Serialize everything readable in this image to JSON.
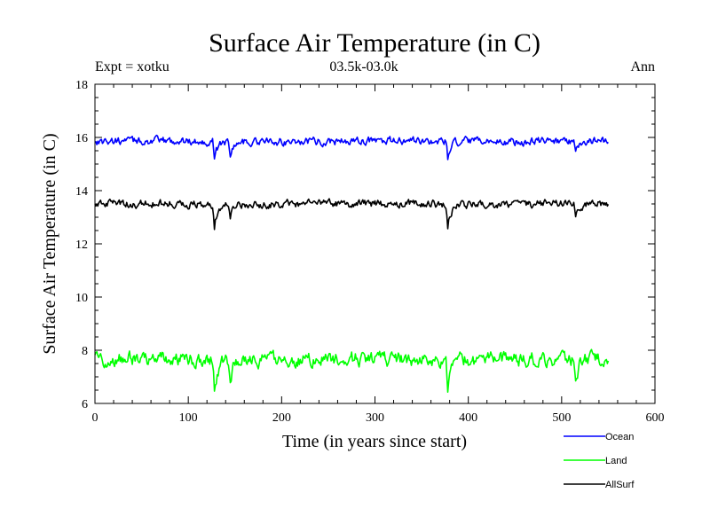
{
  "chart_data": {
    "type": "line",
    "title": "Surface Air Temperature (in C)",
    "subtitle_left": "Expt = xotku",
    "subtitle_center": "03.5k-03.0k",
    "subtitle_right": "Ann",
    "xlabel": "Time (in years since start)",
    "ylabel": "Surface Air Temperature (in C)",
    "xlim": [
      0,
      600
    ],
    "ylim": [
      6,
      18
    ],
    "xticks": [
      0,
      100,
      200,
      300,
      400,
      500,
      600
    ],
    "yticks": [
      6,
      8,
      10,
      12,
      14,
      16,
      18
    ],
    "x_range": [
      0,
      550
    ],
    "grid": false,
    "legend_position": "bottom-right",
    "series": [
      {
        "name": "Ocean",
        "color": "#0000ff",
        "base": 15.85,
        "noise_amplitude": 0.12,
        "events": [
          {
            "x": 128,
            "value": 15.2
          },
          {
            "x": 145,
            "value": 15.35
          },
          {
            "x": 378,
            "value": 15.2
          },
          {
            "x": 515,
            "value": 15.5
          }
        ]
      },
      {
        "name": "Land",
        "color": "#00ff00",
        "base": 7.65,
        "noise_amplitude": 0.22,
        "events": [
          {
            "x": 128,
            "value": 6.55
          },
          {
            "x": 145,
            "value": 6.85
          },
          {
            "x": 378,
            "value": 6.35
          },
          {
            "x": 515,
            "value": 6.95
          }
        ]
      },
      {
        "name": "AllSurf",
        "color": "#000000",
        "base": 13.5,
        "noise_amplitude": 0.12,
        "events": [
          {
            "x": 128,
            "value": 12.7
          },
          {
            "x": 145,
            "value": 12.9
          },
          {
            "x": 378,
            "value": 12.65
          },
          {
            "x": 515,
            "value": 13.05
          }
        ]
      }
    ]
  }
}
